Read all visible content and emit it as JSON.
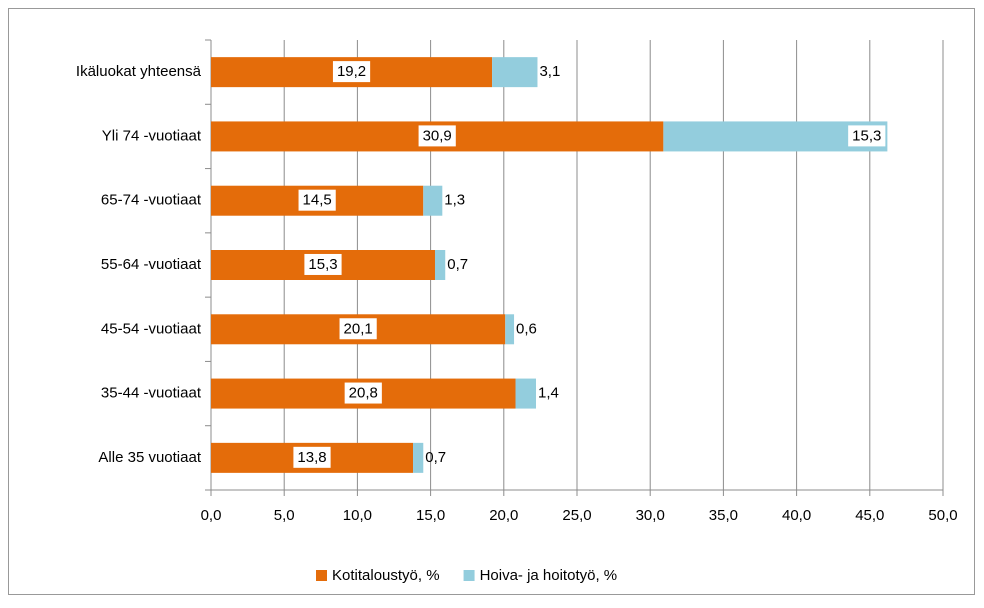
{
  "chart_data": {
    "type": "stacked-bar-horizontal",
    "categories": [
      "Alle 35 vuotiaat",
      "35-44 -vuotiaat",
      "45-54 -vuotiaat",
      "55-64 -vuotiaat",
      "65-74 -vuotiaat",
      "Yli 74 -vuotiaat",
      "Ikäluokat yhteensä"
    ],
    "series": [
      {
        "name": "Kotitaloustyö, %",
        "color": "#e46c0a",
        "values": [
          13.8,
          20.8,
          20.1,
          15.3,
          14.5,
          30.9,
          19.2
        ],
        "value_labels": [
          "13,8",
          "20,8",
          "20,1",
          "15,3",
          "14,5",
          "30,9",
          "19,2"
        ]
      },
      {
        "name": "Hoiva- ja hoitotyö, %",
        "color": "#93cddd",
        "values": [
          0.7,
          1.4,
          0.6,
          0.7,
          1.3,
          15.3,
          3.1
        ],
        "value_labels": [
          "0,7",
          "1,4",
          "0,6",
          "0,7",
          "1,3",
          "15,3",
          "3,1"
        ]
      }
    ],
    "xlim": [
      0,
      50
    ],
    "xticks": [
      {
        "value": 0,
        "label": "0,0"
      },
      {
        "value": 5,
        "label": "5,0"
      },
      {
        "value": 10,
        "label": "10,0"
      },
      {
        "value": 15,
        "label": "15,0"
      },
      {
        "value": 20,
        "label": "20,0"
      },
      {
        "value": 25,
        "label": "25,0"
      },
      {
        "value": 30,
        "label": "30,0"
      },
      {
        "value": 35,
        "label": "35,0"
      },
      {
        "value": 40,
        "label": "40,0"
      },
      {
        "value": 45,
        "label": "45,0"
      },
      {
        "value": 50,
        "label": "50,0"
      }
    ],
    "grid": true,
    "legend": "bottom"
  }
}
